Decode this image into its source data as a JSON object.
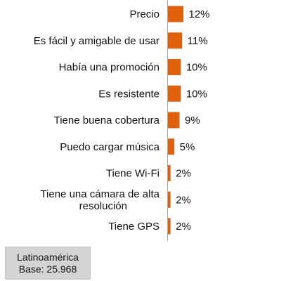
{
  "chart_data": {
    "type": "bar",
    "orientation": "horizontal",
    "categories": [
      "Precio",
      "Es fácil y amigable de usar",
      "Había una promoción",
      "Es resistente",
      "Tiene buena cobertura",
      "Puedo cargar música",
      "Tiene Wi-Fi",
      "Tiene una cámara de alta resolución",
      "Tiene GPS"
    ],
    "values": [
      12,
      11,
      10,
      10,
      9,
      5,
      2,
      2,
      2
    ],
    "data_labels": [
      "12%",
      "11%",
      "10%",
      "10%",
      "9%",
      "5%",
      "2%",
      "2%",
      "2%"
    ],
    "bar_color": "#e0600c",
    "xlim": [
      0,
      100
    ]
  },
  "note": {
    "region": "Latinoamérica",
    "base": "Base: 25.968",
    "background": "#d4d4d4"
  }
}
